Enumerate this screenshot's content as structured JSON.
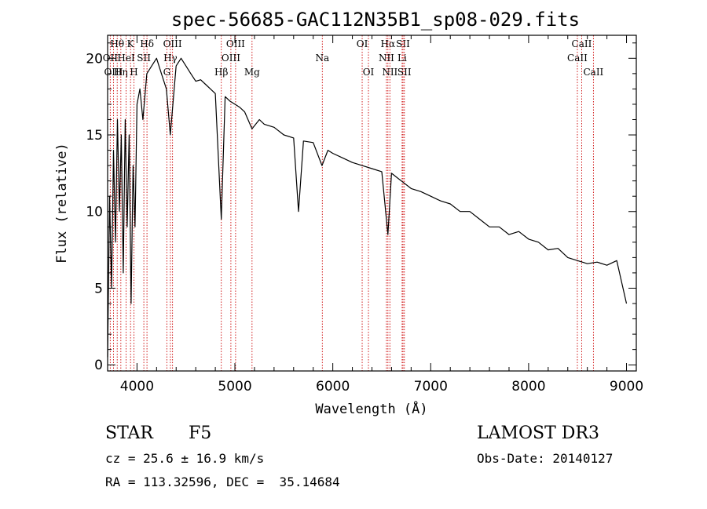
{
  "chart_data": {
    "type": "line",
    "title": "spec-56685-GAC112N35B1_sp08-029.fits",
    "xlabel": "Wavelength (Å)",
    "ylabel": "Flux (relative)",
    "xlim": [
      3700,
      9100
    ],
    "ylim": [
      -0.4,
      21.5
    ],
    "xticks": [
      4000,
      5000,
      6000,
      7000,
      8000,
      9000
    ],
    "yticks": [
      0,
      5,
      10,
      15,
      20
    ],
    "series": [
      {
        "name": "spectrum",
        "x": [
          3700,
          3720,
          3740,
          3760,
          3780,
          3800,
          3820,
          3840,
          3860,
          3880,
          3900,
          3920,
          3940,
          3960,
          3980,
          4000,
          4030,
          4060,
          4100,
          4150,
          4200,
          4250,
          4300,
          4340,
          4400,
          4450,
          4500,
          4550,
          4600,
          4650,
          4700,
          4750,
          4800,
          4861,
          4900,
          4950,
          5000,
          5050,
          5100,
          5175,
          5250,
          5300,
          5400,
          5500,
          5600,
          5650,
          5700,
          5800,
          5890,
          5950,
          6000,
          6100,
          6200,
          6300,
          6400,
          6500,
          6563,
          6600,
          6700,
          6800,
          6900,
          7000,
          7100,
          7200,
          7300,
          7400,
          7500,
          7600,
          7700,
          7800,
          7900,
          8000,
          8100,
          8200,
          8300,
          8400,
          8500,
          8600,
          8700,
          8800,
          8900,
          9000
        ],
        "y": [
          0.5,
          11,
          5,
          14,
          8,
          16,
          10,
          15,
          6,
          16,
          9,
          15,
          4,
          13,
          9,
          17,
          18,
          16,
          19,
          19.5,
          20,
          19,
          18,
          15,
          19.5,
          20,
          19.5,
          19,
          18.5,
          18.6,
          18.3,
          18,
          17.7,
          9.5,
          17.5,
          17.2,
          17,
          16.8,
          16.5,
          15.4,
          16,
          15.7,
          15.5,
          15,
          14.8,
          10,
          14.6,
          14.5,
          13,
          14,
          13.8,
          13.5,
          13.2,
          13,
          12.8,
          12.6,
          8.5,
          12.5,
          12,
          11.5,
          11.3,
          11,
          10.7,
          10.5,
          10,
          10,
          9.5,
          9,
          9,
          8.5,
          8.7,
          8.2,
          8,
          7.5,
          7.6,
          7,
          6.8,
          6.6,
          6.7,
          6.5,
          6.8,
          4
        ]
      }
    ],
    "line_markers": [
      {
        "label": "Hθ",
        "x": 3798,
        "row": 1
      },
      {
        "label": "OII",
        "x": 3727,
        "row": 2
      },
      {
        "label": "OIII",
        "x": 3760,
        "row": 3
      },
      {
        "label": "Hη",
        "x": 3835,
        "row": 3
      },
      {
        "label": "K",
        "x": 3934,
        "row": 1
      },
      {
        "label": "HeI",
        "x": 3889,
        "row": 2
      },
      {
        "label": "SII",
        "x": 4070,
        "row": 2
      },
      {
        "label": "H",
        "x": 3969,
        "row": 3
      },
      {
        "label": "Hδ",
        "x": 4102,
        "row": 1
      },
      {
        "label": "OIII",
        "x": 4363,
        "row": 1
      },
      {
        "label": "Hγ",
        "x": 4341,
        "row": 2
      },
      {
        "label": "G",
        "x": 4305,
        "row": 3
      },
      {
        "label": "Hβ",
        "x": 4861,
        "row": 3
      },
      {
        "label": "OIII",
        "x": 5007,
        "row": 1
      },
      {
        "label": "OIII",
        "x": 4959,
        "row": 2
      },
      {
        "label": "Mg",
        "x": 5175,
        "row": 3
      },
      {
        "label": "Na",
        "x": 5893,
        "row": 2
      },
      {
        "label": "OI",
        "x": 6300,
        "row": 1
      },
      {
        "label": "OI",
        "x": 6364,
        "row": 3
      },
      {
        "label": "Hα",
        "x": 6563,
        "row": 1
      },
      {
        "label": "NII",
        "x": 6548,
        "row": 2
      },
      {
        "label": "NII",
        "x": 6583,
        "row": 3
      },
      {
        "label": "SII",
        "x": 6717,
        "row": 1
      },
      {
        "label": "Li",
        "x": 6708,
        "row": 2
      },
      {
        "label": "SII",
        "x": 6731,
        "row": 3
      },
      {
        "label": "CaII",
        "x": 8542,
        "row": 1
      },
      {
        "label": "CaII",
        "x": 8498,
        "row": 2
      },
      {
        "label": "CaII",
        "x": 8662,
        "row": 3
      }
    ]
  },
  "info": {
    "obj_class": "STAR",
    "subclass": "F5",
    "cz": "cz = 25.6 ± 16.9 km/s",
    "radec": "RA = 113.32596, DEC =  35.14684",
    "survey": "LAMOST DR3",
    "obs_date": "Obs-Date: 20140127"
  },
  "colors": {
    "marker": "#cc0000",
    "line": "#000000"
  }
}
